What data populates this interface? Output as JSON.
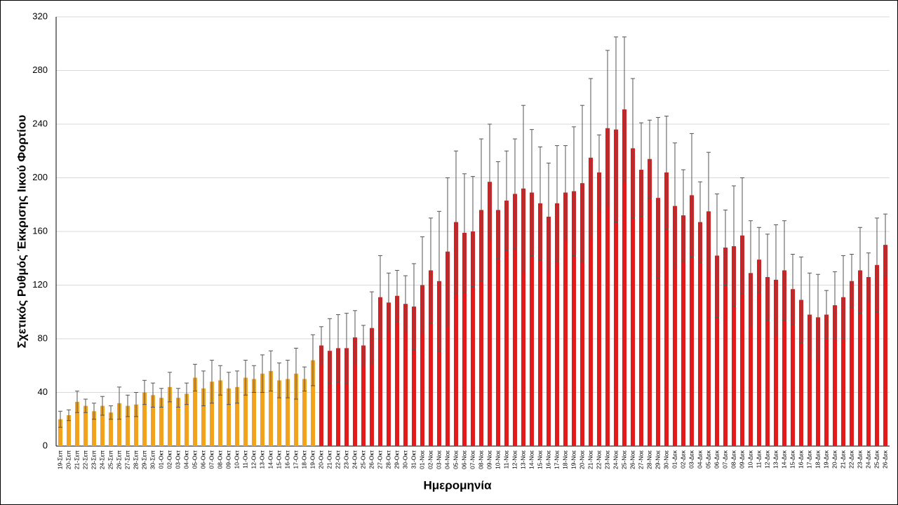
{
  "chart_data": {
    "type": "bar",
    "ylabel": "Σχετικός Ρυθμός Έκκρισης Ιικού Φορτίου",
    "xlabel": "Ημερομηνία",
    "categories": [
      "19-Σεπ",
      "20-Σεπ",
      "21-Σεπ",
      "22-Σεπ",
      "23-Σεπ",
      "24-Σεπ",
      "25-Σεπ",
      "26-Σεπ",
      "27-Σεπ",
      "28-Σεπ",
      "29-Σεπ",
      "30-Σεπ",
      "01-Οκτ",
      "02-Οκτ",
      "03-Οκτ",
      "04-Οκτ",
      "05-Οκτ",
      "06-Οκτ",
      "07-Οκτ",
      "08-Οκτ",
      "09-Οκτ",
      "10-Οκτ",
      "11-Οκτ",
      "12-Οκτ",
      "13-Οκτ",
      "14-Οκτ",
      "15-Οκτ",
      "16-Οκτ",
      "17-Οκτ",
      "18-Οκτ",
      "19-Οκτ",
      "20-Οκτ",
      "21-Οκτ",
      "22-Οκτ",
      "23-Οκτ",
      "24-Οκτ",
      "25-Οκτ",
      "26-Οκτ",
      "27-Οκτ",
      "28-Οκτ",
      "29-Οκτ",
      "30-Οκτ",
      "31-Οκτ",
      "01-Νοε",
      "02-Νοε",
      "03-Νοε",
      "04-Νοε",
      "05-Νοε",
      "06-Νοε",
      "07-Νοε",
      "08-Νοε",
      "09-Νοε",
      "10-Νοε",
      "11-Νοε",
      "12-Νοε",
      "13-Νοε",
      "14-Νοε",
      "15-Νοε",
      "16-Νοε",
      "17-Νοε",
      "18-Νοε",
      "19-Νοε",
      "20-Νοε",
      "21-Νοε",
      "22-Νοε",
      "23-Νοε",
      "24-Νοε",
      "25-Νοε",
      "26-Νοε",
      "27-Νοε",
      "28-Νοε",
      "29-Νοε",
      "30-Νοε",
      "01-Δεκ",
      "02-Δεκ",
      "03-Δεκ",
      "04-Δεκ",
      "05-Δεκ",
      "06-Δεκ",
      "07-Δεκ",
      "08-Δεκ",
      "09-Δεκ",
      "10-Δεκ",
      "11-Δεκ",
      "12-Δεκ",
      "13-Δεκ",
      "14-Δεκ",
      "15-Δεκ",
      "16-Δεκ",
      "17-Δεκ",
      "18-Δεκ",
      "19-Δεκ",
      "20-Δεκ",
      "21-Δεκ",
      "22-Δεκ",
      "23-Δεκ",
      "24-Δεκ",
      "25-Δεκ",
      "26-Δεκ"
    ],
    "values": [
      20,
      23,
      33,
      30,
      26,
      30,
      25,
      32,
      30,
      31,
      40,
      38,
      36,
      44,
      36,
      39,
      51,
      43,
      48,
      49,
      43,
      44,
      51,
      50,
      54,
      56,
      49,
      50,
      54,
      50,
      64,
      75,
      71,
      73,
      73,
      81,
      75,
      88,
      111,
      107,
      112,
      106,
      104,
      120,
      131,
      123,
      145,
      167,
      159,
      160,
      176,
      197,
      176,
      183,
      188,
      192,
      189,
      181,
      171,
      181,
      189,
      190,
      196,
      215,
      204,
      237,
      236,
      251,
      222,
      206,
      214,
      185,
      204,
      179,
      172,
      187,
      167,
      175,
      142,
      148,
      149,
      157,
      129,
      139,
      126,
      124,
      131,
      117,
      109,
      98,
      96,
      98,
      105,
      111,
      123,
      131,
      126,
      135,
      150
    ],
    "errors": [
      6,
      4,
      8,
      5,
      6,
      7,
      5,
      12,
      8,
      9,
      9,
      9,
      7,
      11,
      7,
      8,
      10,
      13,
      16,
      11,
      12,
      12,
      13,
      10,
      14,
      15,
      13,
      14,
      19,
      9,
      19,
      14,
      24,
      25,
      26,
      20,
      15,
      27,
      31,
      22,
      19,
      21,
      32,
      36,
      39,
      52,
      55,
      53,
      44,
      41,
      53,
      43,
      36,
      37,
      41,
      62,
      47,
      42,
      40,
      43,
      35,
      48,
      58,
      59,
      28,
      58,
      69,
      54,
      52,
      35,
      29,
      60,
      42,
      47,
      34,
      46,
      30,
      44,
      46,
      28,
      45,
      43,
      39,
      24,
      32,
      41,
      37,
      26,
      32,
      31,
      32,
      18,
      25,
      31,
      20,
      32,
      18,
      35,
      23
    ],
    "colors": [
      "#f2a21c",
      "#f2a21c",
      "#f2a21c",
      "#f2a21c",
      "#f2a21c",
      "#f2a21c",
      "#f2a21c",
      "#f2a21c",
      "#f2a21c",
      "#f2a21c",
      "#f2a21c",
      "#f2a21c",
      "#f2a21c",
      "#f2a21c",
      "#f2a21c",
      "#f2a21c",
      "#f2a21c",
      "#f2a21c",
      "#f2a21c",
      "#f2a21c",
      "#f2a21c",
      "#f2a21c",
      "#f2a21c",
      "#f2a21c",
      "#f2a21c",
      "#f2a21c",
      "#f2a21c",
      "#f2a21c",
      "#f2a21c",
      "#f2a21c",
      "#f2a21c",
      "#e31a1c",
      "#e31a1c",
      "#e31a1c",
      "#e31a1c",
      "#e31a1c",
      "#e31a1c",
      "#e31a1c",
      "#e31a1c",
      "#e31a1c",
      "#e31a1c",
      "#e31a1c",
      "#e31a1c",
      "#e31a1c",
      "#e31a1c",
      "#e31a1c",
      "#e31a1c",
      "#e31a1c",
      "#e31a1c",
      "#e31a1c",
      "#e31a1c",
      "#e31a1c",
      "#e31a1c",
      "#e31a1c",
      "#e31a1c",
      "#e31a1c",
      "#e31a1c",
      "#e31a1c",
      "#e31a1c",
      "#e31a1c",
      "#e31a1c",
      "#e31a1c",
      "#e31a1c",
      "#e31a1c",
      "#e31a1c",
      "#e31a1c",
      "#e31a1c",
      "#e31a1c",
      "#e31a1c",
      "#e31a1c",
      "#e31a1c",
      "#e31a1c",
      "#e31a1c",
      "#e31a1c",
      "#e31a1c",
      "#e31a1c",
      "#e31a1c",
      "#e31a1c",
      "#e31a1c",
      "#e31a1c",
      "#e31a1c",
      "#e31a1c",
      "#e31a1c",
      "#e31a1c",
      "#e31a1c",
      "#e31a1c",
      "#e31a1c",
      "#e31a1c",
      "#e31a1c",
      "#e31a1c",
      "#e31a1c",
      "#e31a1c",
      "#e31a1c",
      "#e31a1c",
      "#e31a1c",
      "#e31a1c",
      "#e31a1c",
      "#e31a1c",
      "#e31a1c"
    ],
    "error_color": "#555555",
    "ylim": [
      0,
      320
    ],
    "yticks": [
      0,
      40,
      80,
      120,
      160,
      200,
      240,
      280,
      320
    ],
    "grid": true
  }
}
